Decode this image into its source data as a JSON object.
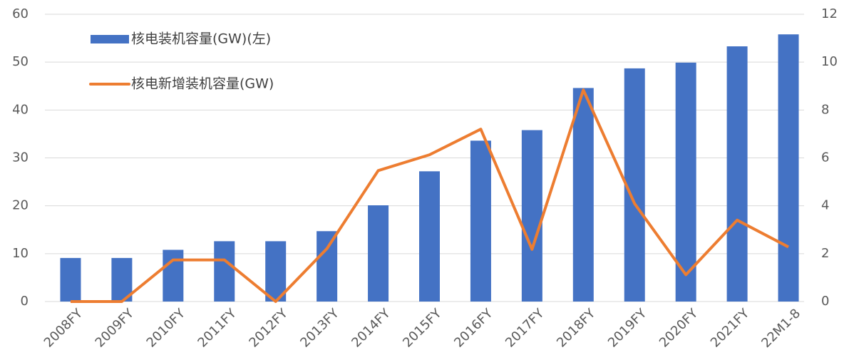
{
  "chart_data": {
    "type": "bar",
    "categories": [
      "2008FY",
      "2009FY",
      "2010FY",
      "2011FY",
      "2012FY",
      "2013FY",
      "2014FY",
      "2015FY",
      "2016FY",
      "2017FY",
      "2018FY",
      "2019FY",
      "2020FY",
      "2021FY",
      "22M1-8"
    ],
    "series": [
      {
        "name": "核电装机容量(GW)(左)",
        "color": "#4472c4",
        "type": "bar",
        "values": [
          9.1,
          9.1,
          10.8,
          12.6,
          12.6,
          14.7,
          20.1,
          27.2,
          33.6,
          35.8,
          44.6,
          48.7,
          49.9,
          53.3,
          55.8
        ]
      },
      {
        "name": "核电新增装机容量(GW)",
        "color": "#ed7d31",
        "type": "line",
        "axis": "y2",
        "values": [
          0,
          0,
          1.74,
          1.74,
          0,
          2.21,
          5.47,
          6.13,
          7.2,
          2.18,
          8.84,
          4.09,
          1.12,
          3.4,
          2.28
        ]
      }
    ],
    "ylim": [
      0,
      60
    ],
    "yticks": [
      0,
      10,
      20,
      30,
      40,
      50,
      60
    ],
    "y2lim": [
      0,
      12
    ],
    "y2ticks": [
      0,
      2,
      4,
      6,
      8,
      10,
      12
    ],
    "grid": true,
    "legend": "upper-left"
  }
}
